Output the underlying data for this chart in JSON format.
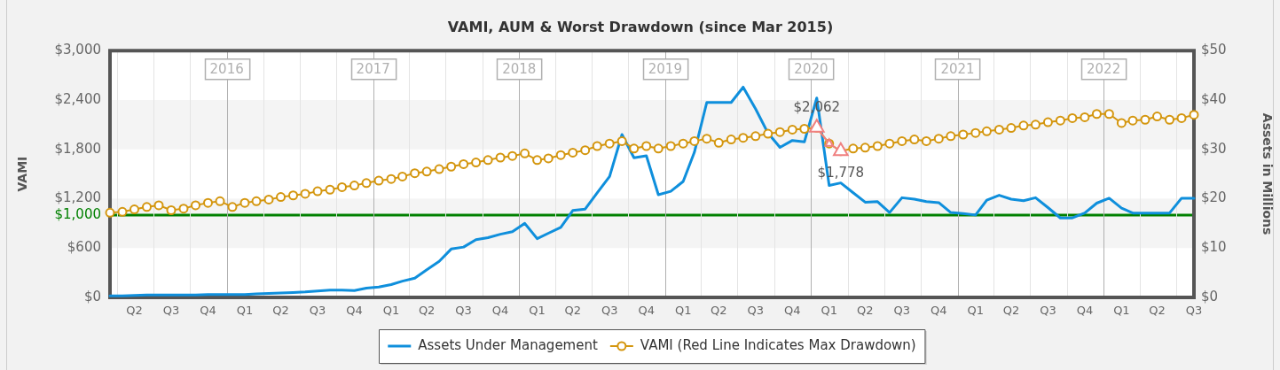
{
  "chart_data": {
    "type": "line",
    "title": "VAMI, AUM & Worst Drawdown (since Mar 2015)",
    "ylabel": "VAMI",
    "y2label": "Assets in Millions",
    "x": [
      "2015-03-15",
      "2015-04-15",
      "2015-05-15",
      "2015-06-15",
      "2015-07-15",
      "2015-08-15",
      "2015-09-15",
      "2015-10-15",
      "2015-11-15",
      "2015-12-15",
      "2016-01-15",
      "2016-02-15",
      "2016-03-15",
      "2016-04-15",
      "2016-05-15",
      "2016-06-15",
      "2016-07-15",
      "2016-08-15",
      "2016-09-15",
      "2016-10-15",
      "2016-11-15",
      "2016-12-15",
      "2017-01-15",
      "2017-02-15",
      "2017-03-15",
      "2017-04-15",
      "2017-05-15",
      "2017-06-15",
      "2017-07-15",
      "2017-08-15",
      "2017-09-15",
      "2017-10-15",
      "2017-11-15",
      "2017-12-15",
      "2018-01-15",
      "2018-02-15",
      "2018-03-15",
      "2018-04-15",
      "2018-05-15",
      "2018-06-15",
      "2018-07-15",
      "2018-08-15",
      "2018-09-15",
      "2018-10-15",
      "2018-11-15",
      "2018-12-15",
      "2019-01-15",
      "2019-02-15",
      "2019-03-15",
      "2019-04-15",
      "2019-05-15",
      "2019-06-15",
      "2019-07-15",
      "2019-08-15",
      "2019-09-15",
      "2019-10-15",
      "2019-11-15",
      "2019-12-15",
      "2020-01-15",
      "2020-02-15",
      "2020-03-15",
      "2020-04-15",
      "2020-05-15",
      "2020-06-15",
      "2020-07-15",
      "2020-08-15",
      "2020-09-15",
      "2020-10-15",
      "2020-11-15",
      "2020-12-15",
      "2021-01-15",
      "2021-02-15",
      "2021-03-15",
      "2021-04-15",
      "2021-05-15",
      "2021-06-15",
      "2021-07-15",
      "2021-08-15",
      "2021-09-15",
      "2021-10-15",
      "2021-11-15",
      "2021-12-15",
      "2022-01-15",
      "2022-02-15",
      "2022-03-15",
      "2022-04-15",
      "2022-05-15",
      "2022-06-15",
      "2022-07-15",
      "2022-08-15"
    ],
    "series": [
      {
        "name": "Assets Under Management",
        "color": "#0f8fdc",
        "axis": "y2",
        "marker": "none",
        "values": [
          0.3,
          0.3,
          0.4,
          0.5,
          0.5,
          0.5,
          0.5,
          0.5,
          0.6,
          0.6,
          0.6,
          0.6,
          0.7,
          0.8,
          0.9,
          1.0,
          1.1,
          1.3,
          1.5,
          1.5,
          1.4,
          1.9,
          2.1,
          2.6,
          3.3,
          3.9,
          5.6,
          7.3,
          9.8,
          10.2,
          11.7,
          12.1,
          12.8,
          13.3,
          15.0,
          11.9,
          13.0,
          14.2,
          17.6,
          17.9,
          21.2,
          24.5,
          33.0,
          28.3,
          28.7,
          20.8,
          21.5,
          23.5,
          29.4,
          39.5,
          39.5,
          39.5,
          42.6,
          38.2,
          33.3,
          30.4,
          31.8,
          31.5,
          40.4,
          22.7,
          23.2,
          21.2,
          19.3,
          19.4,
          17.2,
          20.2,
          19.9,
          19.4,
          19.2,
          17.2,
          17.0,
          16.7,
          19.7,
          20.7,
          19.9,
          19.6,
          20.2,
          18.2,
          16.1,
          16.1,
          17.1,
          19.1,
          20.1,
          18.1,
          17.1,
          17.1,
          17.1,
          17.1,
          20.1,
          20.1
        ]
      },
      {
        "name": "VAMI (Red Line Indicates Max Drawdown)",
        "color": "#d4960e",
        "marker": "circle",
        "values": [
          1030,
          1040,
          1070,
          1100,
          1120,
          1060,
          1080,
          1120,
          1150,
          1170,
          1100,
          1150,
          1170,
          1190,
          1220,
          1240,
          1260,
          1290,
          1310,
          1340,
          1360,
          1390,
          1420,
          1440,
          1470,
          1510,
          1530,
          1560,
          1590,
          1620,
          1640,
          1670,
          1700,
          1720,
          1750,
          1670,
          1690,
          1730,
          1760,
          1790,
          1840,
          1870,
          1900,
          1810,
          1840,
          1810,
          1840,
          1870,
          1900,
          1930,
          1880,
          1920,
          1940,
          1960,
          1990,
          2010,
          2040,
          2050,
          2062,
          1870,
          1778,
          1810,
          1820,
          1840,
          1870,
          1900,
          1920,
          1900,
          1930,
          1960,
          1980,
          2000,
          2020,
          2040,
          2060,
          2090,
          2100,
          2130,
          2150,
          2180,
          2190,
          2230,
          2230,
          2120,
          2150,
          2160,
          2200,
          2160,
          2180,
          2220
        ]
      },
      {
        "color": "#f08080",
        "marker": "triangle",
        "x": [
          "2020-01-15",
          "2020-02-15",
          "2020-03-15"
        ],
        "values": [
          2062,
          1870,
          1778
        ]
      }
    ],
    "xlim": [
      "2015-03-15",
      "2022-08-15"
    ],
    "xticks": [
      {
        "value": "2015-05-15",
        "label": "Q2"
      },
      {
        "value": "2015-08-15",
        "label": "Q3"
      },
      {
        "value": "2015-11-15",
        "label": "Q4"
      },
      {
        "value": "2016-02-15",
        "label": "Q1"
      },
      {
        "value": "2016-05-15",
        "label": "Q2"
      },
      {
        "value": "2016-08-15",
        "label": "Q3"
      },
      {
        "value": "2016-11-15",
        "label": "Q4"
      },
      {
        "value": "2017-02-15",
        "label": "Q1"
      },
      {
        "value": "2017-05-15",
        "label": "Q2"
      },
      {
        "value": "2017-08-15",
        "label": "Q3"
      },
      {
        "value": "2017-11-15",
        "label": "Q4"
      },
      {
        "value": "2018-02-15",
        "label": "Q1"
      },
      {
        "value": "2018-05-15",
        "label": "Q2"
      },
      {
        "value": "2018-08-15",
        "label": "Q3"
      },
      {
        "value": "2018-11-15",
        "label": "Q4"
      },
      {
        "value": "2019-02-15",
        "label": "Q1"
      },
      {
        "value": "2019-05-15",
        "label": "Q2"
      },
      {
        "value": "2019-08-15",
        "label": "Q3"
      },
      {
        "value": "2019-11-15",
        "label": "Q4"
      },
      {
        "value": "2020-02-15",
        "label": "Q1"
      },
      {
        "value": "2020-05-15",
        "label": "Q2"
      },
      {
        "value": "2020-08-15",
        "label": "Q3"
      },
      {
        "value": "2020-11-15",
        "label": "Q4"
      },
      {
        "value": "2021-02-15",
        "label": "Q1"
      },
      {
        "value": "2021-05-15",
        "label": "Q2"
      },
      {
        "value": "2021-08-15",
        "label": "Q3"
      },
      {
        "value": "2021-11-15",
        "label": "Q4"
      },
      {
        "value": "2022-02-15",
        "label": "Q1"
      },
      {
        "value": "2022-05-15",
        "label": "Q2"
      },
      {
        "value": "2022-08-15",
        "label": "Q3"
      }
    ],
    "ylim": [
      0,
      3000
    ],
    "yticks": [
      {
        "value": 0,
        "label": "$0"
      },
      {
        "value": 600,
        "label": "$600"
      },
      {
        "value": 1200,
        "label": "$1,200"
      },
      {
        "value": 1800,
        "label": "$1,800"
      },
      {
        "value": 2400,
        "label": "$2,400"
      },
      {
        "value": 3000,
        "label": "$3,000"
      }
    ],
    "y2lim": [
      0,
      50
    ],
    "y2ticks": [
      {
        "value": 0,
        "label": "$0"
      },
      {
        "value": 10,
        "label": "$10"
      },
      {
        "value": 20,
        "label": "$20"
      },
      {
        "value": 30,
        "label": "$30"
      },
      {
        "value": 40,
        "label": "$40"
      },
      {
        "value": 50,
        "label": "$50"
      }
    ],
    "ref_lines": [
      {
        "axis": "y",
        "value": 1000,
        "label": "$1,000",
        "color": "#008000"
      },
      {
        "axis": "x",
        "value": "2016-01",
        "label": "2016",
        "color": "#b0b0b0"
      },
      {
        "axis": "x",
        "value": "2017-01",
        "label": "2017",
        "color": "#b0b0b0"
      },
      {
        "axis": "x",
        "value": "2018-01",
        "label": "2018",
        "color": "#b0b0b0"
      },
      {
        "axis": "x",
        "value": "2019-01",
        "label": "2019",
        "color": "#b0b0b0"
      },
      {
        "axis": "x",
        "value": "2020-01",
        "label": "2020",
        "color": "#b0b0b0"
      },
      {
        "axis": "x",
        "value": "2021-01",
        "label": "2021",
        "color": "#b0b0b0"
      },
      {
        "axis": "x",
        "value": "2022-01",
        "label": "2022",
        "color": "#b0b0b0"
      },
      {
        "axis": "x",
        "value": "2015-04",
        "color": "#e4e4e4"
      },
      {
        "axis": "x",
        "value": "2015-07",
        "color": "#e4e4e4"
      },
      {
        "axis": "x",
        "value": "2015-10",
        "color": "#e4e4e4"
      },
      {
        "axis": "x",
        "value": "2016-04",
        "color": "#e4e4e4"
      },
      {
        "axis": "x",
        "value": "2016-07",
        "color": "#e4e4e4"
      },
      {
        "axis": "x",
        "value": "2016-10",
        "color": "#e4e4e4"
      },
      {
        "axis": "x",
        "value": "2017-04",
        "color": "#e4e4e4"
      },
      {
        "axis": "x",
        "value": "2017-07",
        "color": "#e4e4e4"
      },
      {
        "axis": "x",
        "value": "2017-10",
        "color": "#e4e4e4"
      },
      {
        "axis": "x",
        "value": "2018-04",
        "color": "#e4e4e4"
      },
      {
        "axis": "x",
        "value": "2018-07",
        "color": "#e4e4e4"
      },
      {
        "axis": "x",
        "value": "2018-10",
        "color": "#e4e4e4"
      },
      {
        "axis": "x",
        "value": "2019-04",
        "color": "#e4e4e4"
      },
      {
        "axis": "x",
        "value": "2019-07",
        "color": "#e4e4e4"
      },
      {
        "axis": "x",
        "value": "2019-10",
        "color": "#e4e4e4"
      },
      {
        "axis": "x",
        "value": "2020-04",
        "color": "#e4e4e4"
      },
      {
        "axis": "x",
        "value": "2020-07",
        "color": "#e4e4e4"
      },
      {
        "axis": "x",
        "value": "2020-10",
        "color": "#e4e4e4"
      },
      {
        "axis": "x",
        "value": "2021-04",
        "color": "#e4e4e4"
      },
      {
        "axis": "x",
        "value": "2021-07",
        "color": "#e4e4e4"
      },
      {
        "axis": "x",
        "value": "2021-10",
        "color": "#e4e4e4"
      },
      {
        "axis": "x",
        "value": "2022-04",
        "color": "#e4e4e4"
      },
      {
        "axis": "x",
        "value": "2022-07",
        "color": "#e4e4e4"
      }
    ],
    "bands": [
      {
        "axis": "y",
        "from": 600,
        "to": 1200,
        "color": "#f4f4f4"
      },
      {
        "axis": "y",
        "from": 1800,
        "to": 2400,
        "color": "#f4f4f4"
      }
    ],
    "annotations": [
      {
        "text": "$2,062",
        "x": "2020-01-15",
        "y": 2062
      },
      {
        "text": "$1,778",
        "x": "2020-03-15",
        "y": 1778
      }
    ],
    "legend": "bottom"
  }
}
